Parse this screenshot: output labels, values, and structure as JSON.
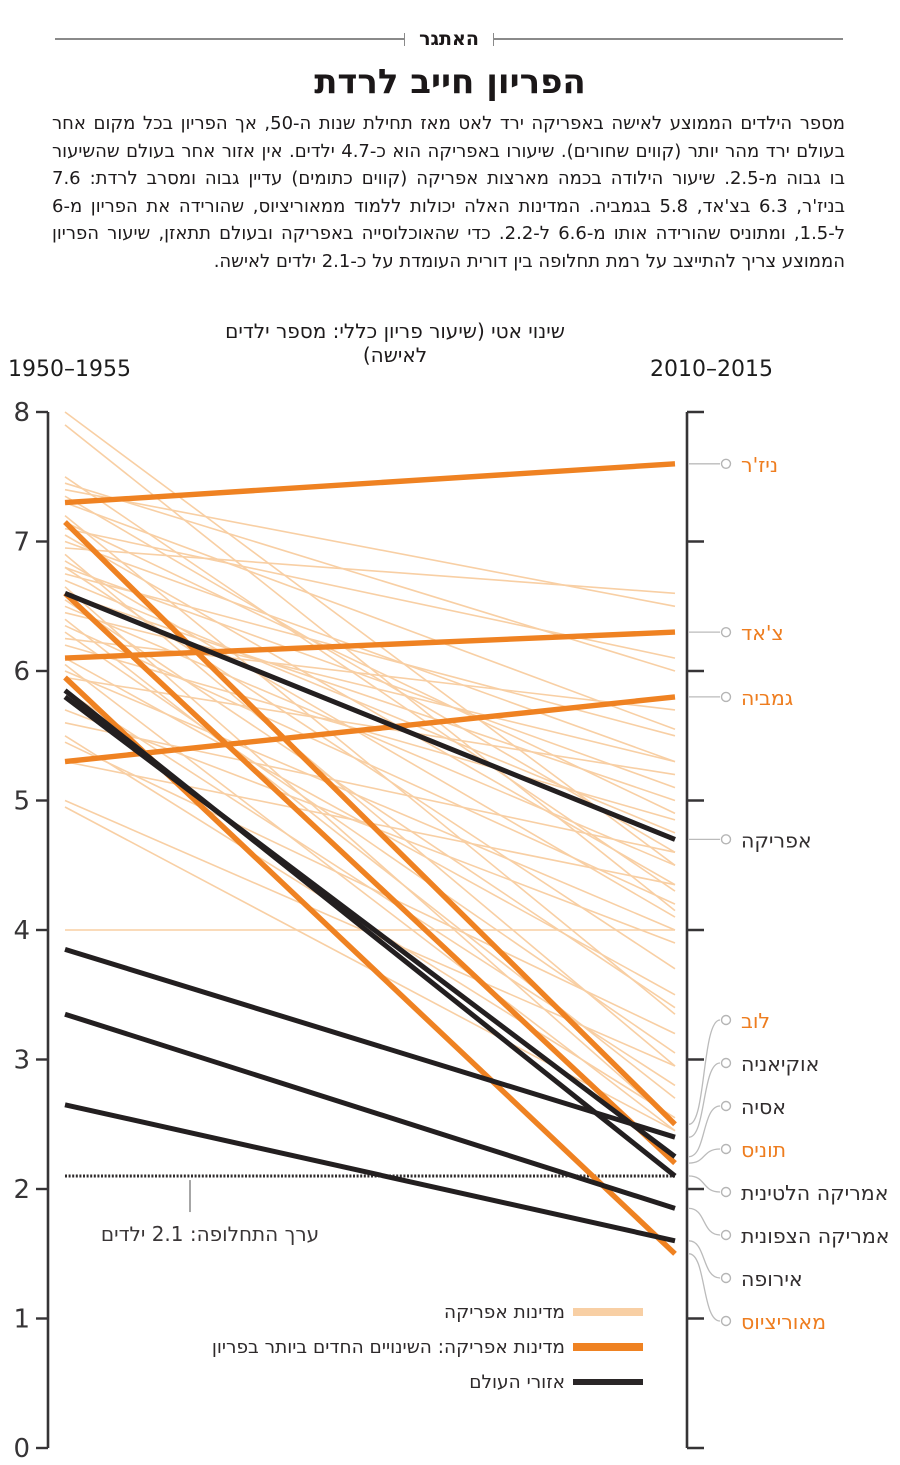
{
  "header": {
    "kicker": "האתגר",
    "title": "הפריון חייב לרדת",
    "intro": "מספר הילדים הממוצע לאישה באפריקה ירד לאט מאז תחילת שנות ה-50, אך הפריון בכל מקום אחר בעולם ירד מהר יותר (קווים שחורים). שיעורו באפריקה הוא כ-4.7 ילדים. אין אזור אחר בעולם שהשיעור בו גבוה מ-2.5. שיעור הילודה בכמה מארצות אפריקה (קווים כתומים) עדיין גבוה ומסרב לרדת: 7.6 בניז'ר, 6.3 בצ'אד, 5.8 בגמביה. המדינות האלה יכולות ללמוד ממאוריציוס, שהורידה את הפריון מ-6 ל-1.5, ומתוניס שהורידה אותו מ-6.6 ל-2.2. כדי שהאוכלוסייה באפריקה ובעולם תתאזן, שיעור הפריון הממוצע צריך להתייצב על רמת תחלופה בין דורית העומדת על כ-2.1 ילדים לאישה."
  },
  "chart_data": {
    "type": "line",
    "subtype": "slope-chart",
    "subtitle": "שינוי אטי (שיעור פריון כללי: מספר ילדים לאישה)",
    "left_period": "1950–1955",
    "right_period": "2010–2015",
    "y_axis": {
      "min": 0,
      "max": 8,
      "ticks": [
        8,
        7,
        6,
        5,
        4,
        3,
        2,
        1,
        0
      ]
    },
    "reference_line": {
      "value": 2.1,
      "label": "ערך התחלופה: 2.1 ילדים"
    },
    "series": {
      "highlight_countries": [
        {
          "name": "ניז'ר",
          "start": 7.3,
          "end": 7.6
        },
        {
          "name": "צ'אד",
          "start": 6.1,
          "end": 6.3
        },
        {
          "name": "גמביה",
          "start": 5.3,
          "end": 5.8
        },
        {
          "name": "לוב",
          "start": 7.15,
          "end": 2.5
        },
        {
          "name": "תוניס",
          "start": 6.6,
          "end": 2.2
        },
        {
          "name": "מאוריציוס",
          "start": 5.95,
          "end": 1.5
        }
      ],
      "world_regions": [
        {
          "name": "אפריקה",
          "start": 6.6,
          "end": 4.7
        },
        {
          "name": "אסיה",
          "start": 5.8,
          "end": 2.25
        },
        {
          "name": "אמריקה הלטינית",
          "start": 5.85,
          "end": 2.1
        },
        {
          "name": "אוקיאניה",
          "start": 3.85,
          "end": 2.4
        },
        {
          "name": "אמריקה הצפונית",
          "start": 3.35,
          "end": 1.85
        },
        {
          "name": "אירופה",
          "start": 2.65,
          "end": 1.6
        }
      ],
      "africa_background": [
        [
          8.0,
          4.5
        ],
        [
          7.9,
          4.15
        ],
        [
          7.5,
          4.3
        ],
        [
          7.45,
          6.0
        ],
        [
          7.4,
          6.5
        ],
        [
          7.35,
          4.6
        ],
        [
          7.3,
          5.55
        ],
        [
          7.2,
          3.35
        ],
        [
          7.15,
          4.9
        ],
        [
          7.1,
          6.1
        ],
        [
          7.05,
          4.35
        ],
        [
          7.0,
          5.3
        ],
        [
          6.95,
          6.6
        ],
        [
          6.9,
          2.95
        ],
        [
          6.85,
          4.1
        ],
        [
          6.8,
          5.1
        ],
        [
          6.8,
          3.7
        ],
        [
          6.75,
          5.5
        ],
        [
          6.7,
          4.75
        ],
        [
          6.65,
          2.5
        ],
        [
          6.6,
          5.0
        ],
        [
          6.55,
          3.4
        ],
        [
          6.5,
          4.5
        ],
        [
          6.45,
          5.3
        ],
        [
          6.4,
          2.7
        ],
        [
          6.35,
          4.2
        ],
        [
          6.3,
          3.05
        ],
        [
          6.25,
          5.7
        ],
        [
          6.2,
          4.85
        ],
        [
          6.1,
          3.5
        ],
        [
          6.05,
          2.45
        ],
        [
          6.0,
          4.0
        ],
        [
          5.95,
          5.2
        ],
        [
          5.85,
          2.8
        ],
        [
          5.7,
          3.9
        ],
        [
          5.6,
          4.6
        ],
        [
          5.5,
          2.55
        ],
        [
          5.45,
          3.2
        ],
        [
          5.3,
          4.35
        ],
        [
          5.0,
          2.95
        ],
        [
          4.95,
          2.45
        ],
        [
          4.0,
          4.0
        ]
      ]
    },
    "labels": {
      "top": [
        "ניז'ר",
        "צ'אד",
        "גמביה",
        "אפריקה"
      ],
      "bottom": [
        "לוב",
        "אוקיאניה",
        "אסיה",
        "תוניס",
        "אמריקה הלטינית",
        "אמריקה הצפונית",
        "אירופה",
        "מאוריציוס"
      ]
    }
  },
  "legend": {
    "items": [
      {
        "label": "מדינות אפריקה",
        "color": "#F8CFA4"
      },
      {
        "label": "מדינות אפריקה: השינויים החדים ביותר בפריון",
        "color": "#EF8222"
      },
      {
        "label": "אזורי העולם",
        "color": "#2A2627"
      }
    ]
  },
  "colors": {
    "orange": "#EF8222",
    "light_orange": "#F8CFA4",
    "black": "#231F20",
    "axis": "#363436",
    "connector": "#BBBBBB",
    "orange_label": "#EE7D1F",
    "dark_label": "#312D2E"
  }
}
